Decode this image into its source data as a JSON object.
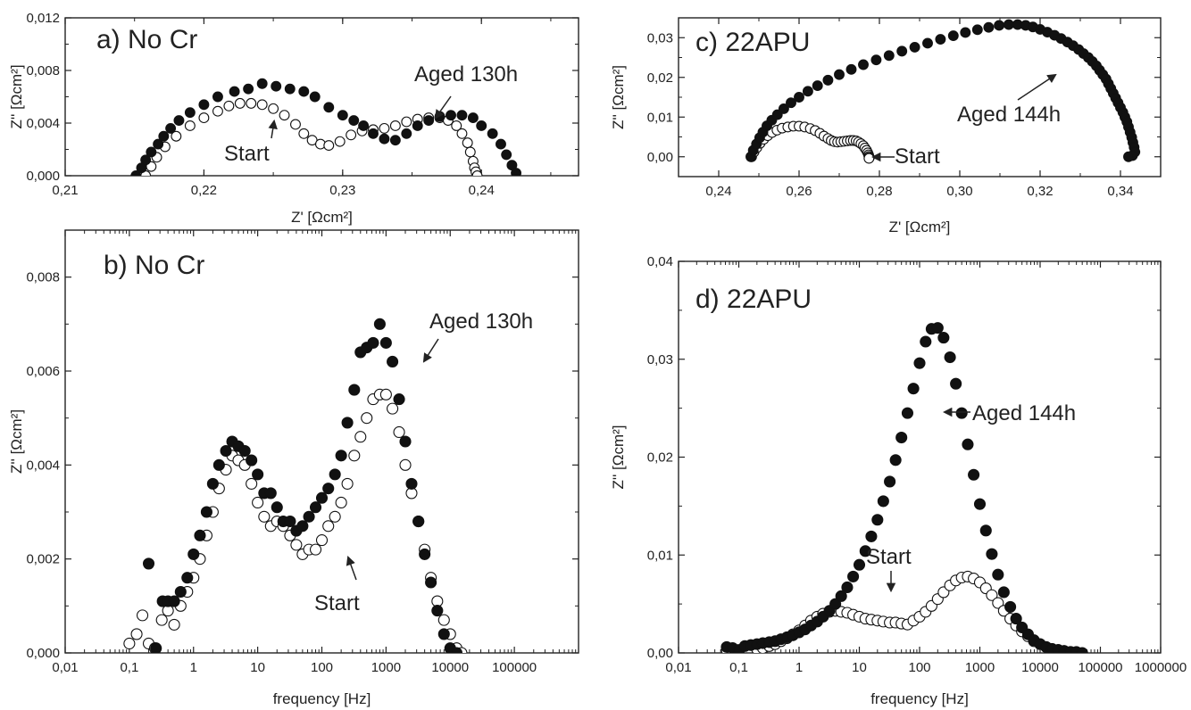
{
  "chart_data": [
    {
      "panel": "a",
      "type": "scatter",
      "title": "a) No Cr",
      "xlabel": "Z' [Ωcm²]",
      "ylabel": "Z'' [Ωcm²]",
      "xscale": "linear",
      "xlim": [
        0.21,
        0.247
      ],
      "ylim": [
        0,
        0.012
      ],
      "xticks": [
        0.21,
        0.22,
        0.23,
        0.24
      ],
      "xtick_labels": [
        "0,21",
        "0,22",
        "0,23",
        "0,24"
      ],
      "yticks": [
        0,
        0.004,
        0.008,
        0.012
      ],
      "ytick_labels": [
        "0,000",
        "0,004",
        "0,008",
        "0,012"
      ],
      "series": [
        {
          "marker": "filled",
          "x": [
            0.2151,
            0.2155,
            0.2158,
            0.2162,
            0.2167,
            0.2171,
            0.2176,
            0.2182,
            0.219,
            0.22,
            0.221,
            0.2222,
            0.2232,
            0.2242,
            0.2252,
            0.2262,
            0.2272,
            0.228,
            0.229,
            0.23,
            0.2308,
            0.2315,
            0.2322,
            0.233,
            0.2338,
            0.2346,
            0.2354,
            0.2362,
            0.237,
            0.2378,
            0.2386,
            0.2394,
            0.24,
            0.2408,
            0.2414,
            0.2418,
            0.2422,
            0.2425
          ],
          "y": [
            0.0,
            0.0006,
            0.0012,
            0.0018,
            0.0024,
            0.003,
            0.0036,
            0.0042,
            0.0048,
            0.0054,
            0.006,
            0.0064,
            0.0066,
            0.007,
            0.0068,
            0.0066,
            0.0064,
            0.006,
            0.0052,
            0.0046,
            0.0042,
            0.0038,
            0.0032,
            0.0028,
            0.0027,
            0.0032,
            0.0038,
            0.0042,
            0.0045,
            0.0046,
            0.0046,
            0.0044,
            0.0038,
            0.0032,
            0.0024,
            0.0016,
            0.0008,
            0.0002
          ]
        },
        {
          "marker": "open",
          "x": [
            0.2158,
            0.2162,
            0.2166,
            0.2172,
            0.218,
            0.219,
            0.22,
            0.221,
            0.2218,
            0.2226,
            0.2234,
            0.2242,
            0.225,
            0.2258,
            0.2266,
            0.2272,
            0.2278,
            0.2284,
            0.229,
            0.2298,
            0.2306,
            0.2314,
            0.2322,
            0.233,
            0.2338,
            0.2346,
            0.2354,
            0.2362,
            0.237,
            0.2376,
            0.2382,
            0.2386,
            0.239,
            0.2392,
            0.2394,
            0.2395,
            0.2396,
            0.2397
          ],
          "y": [
            0.0,
            0.0007,
            0.0014,
            0.0022,
            0.003,
            0.0038,
            0.0044,
            0.0049,
            0.0053,
            0.0055,
            0.0055,
            0.0054,
            0.0051,
            0.0046,
            0.0039,
            0.0032,
            0.0027,
            0.0024,
            0.0023,
            0.0026,
            0.0031,
            0.0034,
            0.0035,
            0.0036,
            0.0038,
            0.0041,
            0.0043,
            0.0044,
            0.0044,
            0.0042,
            0.0038,
            0.0032,
            0.0025,
            0.0018,
            0.0011,
            0.0006,
            0.0003,
            0.0
          ]
        }
      ],
      "annotations": [
        "Aged 130h",
        "Start"
      ]
    },
    {
      "panel": "b",
      "type": "scatter",
      "title": "b) No Cr",
      "xlabel": "frequency [Hz]",
      "ylabel": "Z'' [Ωcm²]",
      "xscale": "log",
      "xlim": [
        0.01,
        1000000
      ],
      "ylim": [
        0,
        0.009
      ],
      "xticks": [
        0.01,
        0.1,
        1,
        10,
        100,
        1000,
        10000,
        100000
      ],
      "xtick_labels": [
        "0,01",
        "0,1",
        "1",
        "10",
        "100",
        "1000",
        "10000",
        "100000"
      ],
      "yticks": [
        0,
        0.002,
        0.004,
        0.006,
        0.008
      ],
      "ytick_labels": [
        "0,000",
        "0,002",
        "0,004",
        "0,006",
        "0,008"
      ],
      "series": [
        {
          "marker": "filled",
          "x": [
            0.2,
            0.26,
            0.33,
            0.4,
            0.5,
            0.63,
            0.8,
            1,
            1.26,
            1.6,
            2,
            2.5,
            3.2,
            4,
            5,
            6.3,
            8,
            10,
            12.6,
            16,
            20,
            25,
            32,
            40,
            50,
            63,
            80,
            100,
            126,
            160,
            200,
            250,
            320,
            400,
            500,
            630,
            800,
            1000,
            1260,
            1600,
            2000,
            2500,
            3200,
            4000,
            5000,
            6300,
            8000,
            10000,
            12600
          ],
          "y": [
            0.0019,
            0.0001,
            0.0011,
            0.0011,
            0.0011,
            0.0013,
            0.0016,
            0.0021,
            0.0025,
            0.003,
            0.0036,
            0.004,
            0.0043,
            0.0045,
            0.0044,
            0.0043,
            0.0041,
            0.0038,
            0.0034,
            0.0034,
            0.0031,
            0.0028,
            0.0028,
            0.0026,
            0.0027,
            0.0029,
            0.0031,
            0.0033,
            0.0035,
            0.0038,
            0.0042,
            0.0049,
            0.0056,
            0.0064,
            0.0065,
            0.0066,
            0.007,
            0.0066,
            0.0062,
            0.0054,
            0.0045,
            0.0036,
            0.0028,
            0.0021,
            0.0015,
            0.0009,
            0.0004,
            0.0001,
            0.0
          ]
        },
        {
          "marker": "open",
          "x": [
            0.1,
            0.13,
            0.16,
            0.2,
            0.25,
            0.32,
            0.4,
            0.5,
            0.63,
            0.8,
            1,
            1.26,
            1.6,
            2,
            2.5,
            3.2,
            4,
            5,
            6.3,
            8,
            10,
            12.6,
            16,
            20,
            25,
            32,
            40,
            50,
            63,
            80,
            100,
            126,
            160,
            200,
            250,
            320,
            400,
            500,
            630,
            800,
            1000,
            1260,
            1600,
            2000,
            2500,
            3200,
            4000,
            5000,
            6300,
            8000,
            10000,
            12600,
            15000
          ],
          "y": [
            0.0002,
            0.0004,
            0.0008,
            0.0002,
            0.0001,
            0.0007,
            0.0009,
            0.0006,
            0.001,
            0.0013,
            0.0016,
            0.002,
            0.0025,
            0.003,
            0.0035,
            0.0039,
            0.0042,
            0.0041,
            0.004,
            0.0036,
            0.0032,
            0.0029,
            0.0027,
            0.0028,
            0.0027,
            0.0025,
            0.0023,
            0.0021,
            0.0022,
            0.0022,
            0.0024,
            0.0027,
            0.0029,
            0.0032,
            0.0036,
            0.0042,
            0.0046,
            0.005,
            0.0054,
            0.0055,
            0.0055,
            0.0052,
            0.0047,
            0.004,
            0.0034,
            0.0028,
            0.0022,
            0.0016,
            0.0011,
            0.0007,
            0.0004,
            0.0001,
            0.0
          ]
        }
      ],
      "annotations": [
        "Aged 130h",
        "Start"
      ]
    },
    {
      "panel": "c",
      "type": "scatter",
      "title": "c) 22APU",
      "xlabel": "Z' [Ωcm²]",
      "ylabel": "Z'' [Ωcm²]",
      "xscale": "linear",
      "xlim": [
        0.23,
        0.35
      ],
      "ylim": [
        -0.005,
        0.035
      ],
      "xticks": [
        0.24,
        0.26,
        0.28,
        0.3,
        0.32,
        0.34
      ],
      "xtick_labels": [
        "0,24",
        "0,26",
        "0,28",
        "0,30",
        "0,32",
        "0,34"
      ],
      "yticks": [
        0,
        0.01,
        0.02,
        0.03
      ],
      "ytick_labels": [
        "0,00",
        "0,01",
        "0,02",
        "0,03"
      ],
      "series": [
        {
          "marker": "filled",
          "x": [
            0.248,
            0.2486,
            0.2494,
            0.2502,
            0.251,
            0.252,
            0.2532,
            0.2546,
            0.2562,
            0.258,
            0.26,
            0.2622,
            0.2646,
            0.2672,
            0.27,
            0.273,
            0.276,
            0.2792,
            0.2824,
            0.2856,
            0.2888,
            0.292,
            0.2952,
            0.2984,
            0.3014,
            0.3044,
            0.3072,
            0.3098,
            0.3122,
            0.3144,
            0.3164,
            0.3182,
            0.32,
            0.3218,
            0.3236,
            0.3252,
            0.3268,
            0.3282,
            0.3296,
            0.3308,
            0.332,
            0.333,
            0.334,
            0.3348,
            0.3356,
            0.3364,
            0.337,
            0.3376,
            0.3382,
            0.3388,
            0.3394,
            0.34,
            0.3406,
            0.3411,
            0.3416,
            0.342,
            0.3424,
            0.3428,
            0.3431,
            0.3434,
            0.3436,
            0.343,
            0.342
          ],
          "y": [
            0.0,
            0.0016,
            0.0032,
            0.0048,
            0.0062,
            0.0078,
            0.0092,
            0.0106,
            0.0121,
            0.0136,
            0.015,
            0.0165,
            0.0179,
            0.0193,
            0.0207,
            0.022,
            0.0232,
            0.0244,
            0.0255,
            0.0266,
            0.0276,
            0.0286,
            0.0296,
            0.0305,
            0.0313,
            0.032,
            0.0326,
            0.0331,
            0.0333,
            0.0333,
            0.0331,
            0.0327,
            0.0321,
            0.0314,
            0.0306,
            0.0298,
            0.0289,
            0.028,
            0.027,
            0.026,
            0.025,
            0.024,
            0.0229,
            0.0218,
            0.0207,
            0.0196,
            0.0184,
            0.0172,
            0.016,
            0.0148,
            0.0136,
            0.0124,
            0.0112,
            0.01,
            0.0088,
            0.0075,
            0.0062,
            0.0049,
            0.0036,
            0.0024,
            0.0012,
            0.0003,
            0.0
          ]
        },
        {
          "marker": "open",
          "x": [
            0.2482,
            0.2488,
            0.2495,
            0.2503,
            0.2512,
            0.2522,
            0.2533,
            0.2545,
            0.2558,
            0.2572,
            0.2586,
            0.26,
            0.2614,
            0.2628,
            0.264,
            0.2652,
            0.2662,
            0.2672,
            0.268,
            0.2688,
            0.2696,
            0.2704,
            0.2712,
            0.272,
            0.2728,
            0.2735,
            0.2742,
            0.2748,
            0.2754,
            0.276,
            0.2764,
            0.2768,
            0.2771,
            0.2773,
            0.2774,
            0.2775,
            0.2774
          ],
          "y": [
            0.0,
            0.0012,
            0.0023,
            0.0034,
            0.0044,
            0.0053,
            0.0061,
            0.0067,
            0.0072,
            0.0075,
            0.0077,
            0.0077,
            0.0075,
            0.0071,
            0.0066,
            0.0059,
            0.0052,
            0.0046,
            0.0041,
            0.0038,
            0.0037,
            0.0038,
            0.0039,
            0.004,
            0.0041,
            0.0041,
            0.004,
            0.0037,
            0.0033,
            0.0028,
            0.0022,
            0.0016,
            0.001,
            0.0005,
            0.0001,
            -0.0002,
            -0.0004
          ]
        }
      ],
      "annotations": [
        "Aged 144h",
        "Start"
      ]
    },
    {
      "panel": "d",
      "type": "scatter",
      "title": "d) 22APU",
      "xlabel": "frequency [Hz]",
      "ylabel": "Z'' [Ωcm²]",
      "xscale": "log",
      "xlim": [
        0.01,
        1000000
      ],
      "ylim": [
        0,
        0.04
      ],
      "xticks": [
        0.01,
        0.1,
        1,
        10,
        100,
        1000,
        10000,
        100000,
        1000000
      ],
      "xtick_labels": [
        "0,01",
        "0,1",
        "1",
        "10",
        "100",
        "1000",
        "10000",
        "100000",
        "1000000"
      ],
      "yticks": [
        0,
        0.01,
        0.02,
        0.03,
        0.04
      ],
      "ytick_labels": [
        "0,00",
        "0,01",
        "0,02",
        "0,03",
        "0,04"
      ],
      "series": [
        {
          "marker": "filled",
          "x": [
            0.063,
            0.079,
            0.1,
            0.126,
            0.158,
            0.2,
            0.25,
            0.32,
            0.4,
            0.5,
            0.63,
            0.79,
            1,
            1.26,
            1.58,
            2,
            2.5,
            3.2,
            4,
            5,
            6.3,
            7.9,
            10,
            12.6,
            15.8,
            20,
            25,
            32,
            40,
            50,
            63,
            79,
            100,
            126,
            158,
            200,
            250,
            320,
            400,
            500,
            630,
            790,
            1000,
            1260,
            1580,
            2000,
            2500,
            3200,
            4000,
            5000,
            6300,
            7900,
            10000,
            12600,
            15800,
            20000,
            25000,
            32000,
            40000,
            50000
          ],
          "y": [
            0.0006,
            0.0005,
            0.0003,
            0.0007,
            0.0008,
            0.0009,
            0.001,
            0.0011,
            0.0012,
            0.0014,
            0.0016,
            0.0018,
            0.0021,
            0.0024,
            0.0028,
            0.0032,
            0.0037,
            0.0043,
            0.005,
            0.0058,
            0.0067,
            0.0078,
            0.009,
            0.0104,
            0.0119,
            0.0136,
            0.0155,
            0.0175,
            0.0197,
            0.022,
            0.0245,
            0.027,
            0.0296,
            0.0318,
            0.0331,
            0.0332,
            0.0322,
            0.0302,
            0.0275,
            0.0245,
            0.0213,
            0.0182,
            0.0152,
            0.0125,
            0.0101,
            0.008,
            0.0062,
            0.0047,
            0.0035,
            0.0026,
            0.0019,
            0.0013,
            0.0009,
            0.0006,
            0.0004,
            0.0003,
            0.0002,
            0.0001,
            0.0001,
            0.0
          ]
        },
        {
          "marker": "open",
          "x": [
            0.063,
            0.079,
            0.1,
            0.2,
            0.25,
            0.32,
            0.4,
            0.5,
            0.63,
            0.79,
            1,
            1.26,
            1.58,
            2,
            2.5,
            3.2,
            4,
            5,
            6.3,
            7.9,
            10,
            12.6,
            15.8,
            20,
            25,
            32,
            40,
            50,
            63,
            79,
            100,
            126,
            158,
            200,
            250,
            320,
            400,
            500,
            630,
            790,
            1000,
            1260,
            1580,
            2000,
            2500,
            3200,
            4000,
            5000,
            6300,
            7900,
            10000,
            12600,
            15800,
            20000,
            25000,
            32000
          ],
          "y": [
            0.0003,
            0.0003,
            0.0002,
            0.0004,
            0.0005,
            0.0007,
            0.0009,
            0.0012,
            0.0015,
            0.0019,
            0.0023,
            0.0028,
            0.0033,
            0.0037,
            0.004,
            0.0042,
            0.0043,
            0.0042,
            0.0041,
            0.0039,
            0.0037,
            0.0035,
            0.0034,
            0.0033,
            0.0032,
            0.0031,
            0.0031,
            0.003,
            0.0029,
            0.0033,
            0.0037,
            0.0042,
            0.0048,
            0.0055,
            0.0062,
            0.0069,
            0.0074,
            0.0077,
            0.0078,
            0.0076,
            0.0072,
            0.0066,
            0.0059,
            0.0051,
            0.0043,
            0.0035,
            0.0028,
            0.0022,
            0.0017,
            0.0012,
            0.0009,
            0.0006,
            0.0004,
            0.0003,
            0.0002,
            0.0001
          ]
        }
      ],
      "annotations": [
        "Aged 144h",
        "Start"
      ]
    }
  ]
}
